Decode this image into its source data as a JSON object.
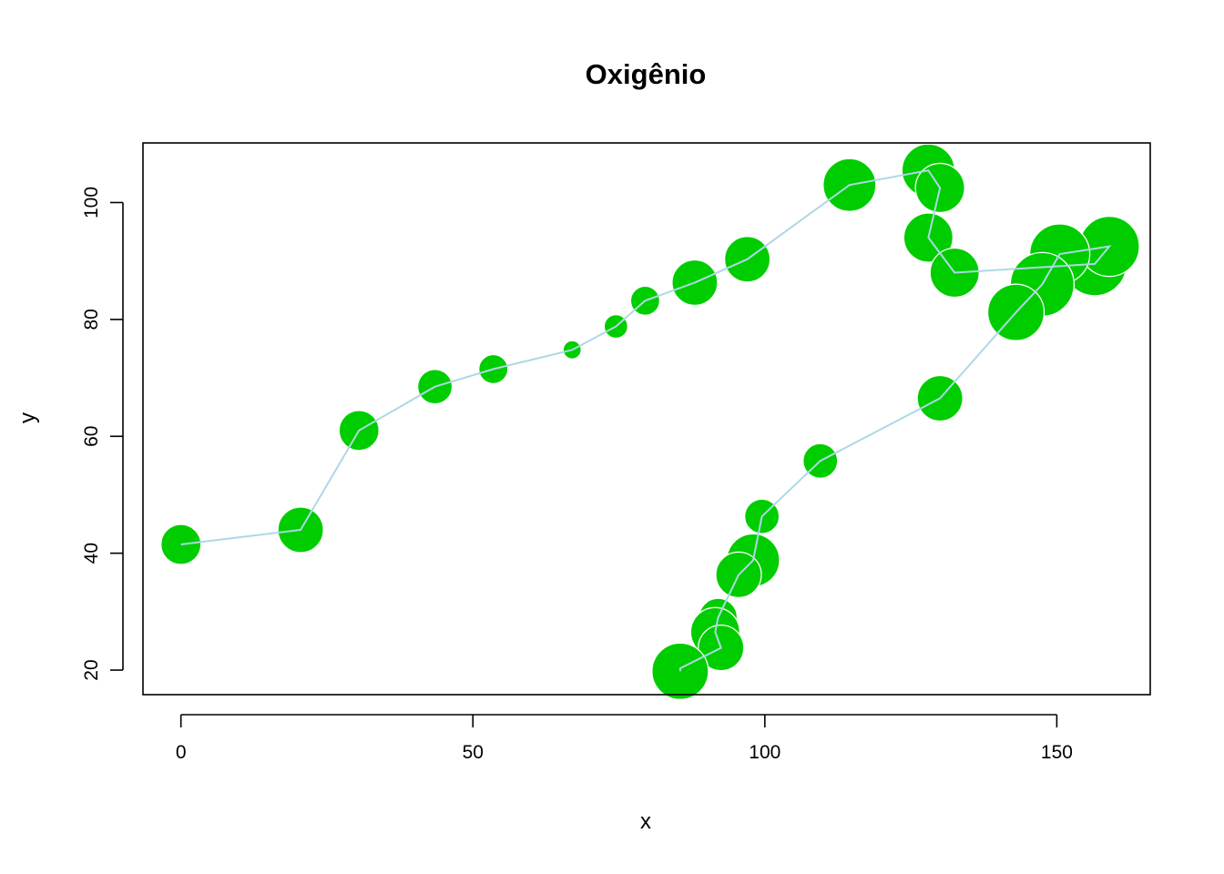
{
  "chart_data": {
    "type": "scatter",
    "title": "Oxigênio",
    "xlabel": "x",
    "ylabel": "y",
    "xlim": [
      -6.5,
      166
    ],
    "ylim": [
      15.8,
      110.2
    ],
    "grid": false,
    "legend": "none",
    "x_ticks": [
      0,
      50,
      100,
      150
    ],
    "y_ticks": [
      20,
      40,
      60,
      80,
      100
    ],
    "colors": {
      "points": "#00cd00",
      "point_border": "#ffffff",
      "line": "#add8e6",
      "axes": "#000000"
    },
    "points": [
      {
        "x": 0.0,
        "y": 41.5,
        "size": 22
      },
      {
        "x": 20.5,
        "y": 44.0,
        "size": 25
      },
      {
        "x": 30.5,
        "y": 61.0,
        "size": 22
      },
      {
        "x": 43.5,
        "y": 68.5,
        "size": 19
      },
      {
        "x": 53.5,
        "y": 71.5,
        "size": 16
      },
      {
        "x": 67.0,
        "y": 74.8,
        "size": 10
      },
      {
        "x": 74.5,
        "y": 78.8,
        "size": 13
      },
      {
        "x": 79.5,
        "y": 83.2,
        "size": 16
      },
      {
        "x": 88.0,
        "y": 86.3,
        "size": 25
      },
      {
        "x": 97.0,
        "y": 90.3,
        "size": 25
      },
      {
        "x": 114.5,
        "y": 103.0,
        "size": 29
      },
      {
        "x": 128.0,
        "y": 105.5,
        "size": 29
      },
      {
        "x": 130.0,
        "y": 102.5,
        "size": 27
      },
      {
        "x": 128.0,
        "y": 94.0,
        "size": 27
      },
      {
        "x": 132.5,
        "y": 88.0,
        "size": 27
      },
      {
        "x": 156.5,
        "y": 89.5,
        "size": 35
      },
      {
        "x": 159.0,
        "y": 92.5,
        "size": 33
      },
      {
        "x": 150.5,
        "y": 91.2,
        "size": 33
      },
      {
        "x": 147.5,
        "y": 86.0,
        "size": 35
      },
      {
        "x": 143.0,
        "y": 81.2,
        "size": 31
      },
      {
        "x": 130.0,
        "y": 66.5,
        "size": 25
      },
      {
        "x": 109.5,
        "y": 55.8,
        "size": 19
      },
      {
        "x": 99.5,
        "y": 46.3,
        "size": 19
      },
      {
        "x": 98.0,
        "y": 38.8,
        "size": 29
      },
      {
        "x": 95.5,
        "y": 36.3,
        "size": 25
      },
      {
        "x": 92.0,
        "y": 29.0,
        "size": 21
      },
      {
        "x": 91.5,
        "y": 26.5,
        "size": 27
      },
      {
        "x": 92.5,
        "y": 23.8,
        "size": 25
      },
      {
        "x": 85.5,
        "y": 20.3,
        "size": 27
      },
      {
        "x": 85.5,
        "y": 19.8,
        "size": 31
      }
    ]
  }
}
